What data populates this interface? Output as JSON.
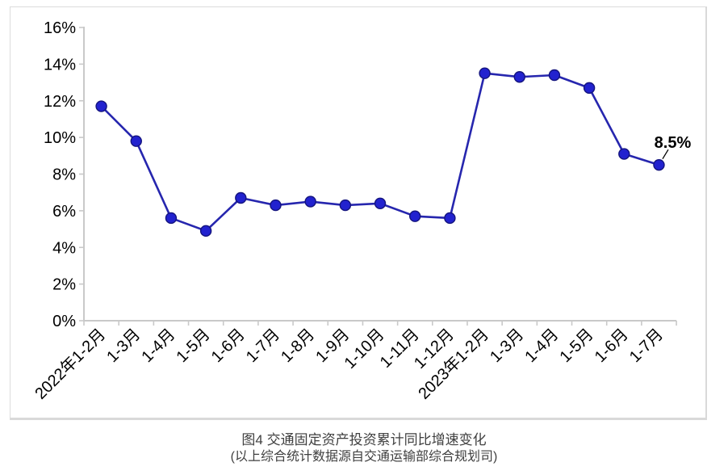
{
  "chart_data": {
    "type": "line",
    "title": "图4  交通固定资产投资累计同比增速变化",
    "source_note": "(以上综合统计数据源自交通运输部综合规划司)",
    "categories": [
      "2022年1-2月",
      "1-3月",
      "1-4月",
      "1-5月",
      "1-6月",
      "1-7月",
      "1-8月",
      "1-9月",
      "1-10月",
      "1-11月",
      "1-12月",
      "2023年1-2月",
      "1-3月",
      "1-4月",
      "1-5月",
      "1-6月",
      "1-7月"
    ],
    "values": [
      11.7,
      9.8,
      5.6,
      4.9,
      6.7,
      6.3,
      6.5,
      6.3,
      6.4,
      5.7,
      5.6,
      13.5,
      13.3,
      13.4,
      12.7,
      9.1,
      8.5
    ],
    "unit": "%",
    "ylim": [
      0,
      16
    ],
    "y_tick_step": 2,
    "y_tick_labels": [
      "0%",
      "2%",
      "4%",
      "6%",
      "8%",
      "10%",
      "12%",
      "14%",
      "16%"
    ],
    "grid": false,
    "legend": "none",
    "annotation": {
      "text": "8.5%",
      "point_index": 16
    },
    "colors": {
      "line": "#2626AE",
      "marker_fill": "#2222CF",
      "marker_stroke": "#14147E",
      "axis": "#c9c9c9",
      "tick_label": "#000000",
      "annotation_text": "#000000",
      "caption_text": "#404040",
      "frame_border": "#d9d9d9"
    }
  }
}
